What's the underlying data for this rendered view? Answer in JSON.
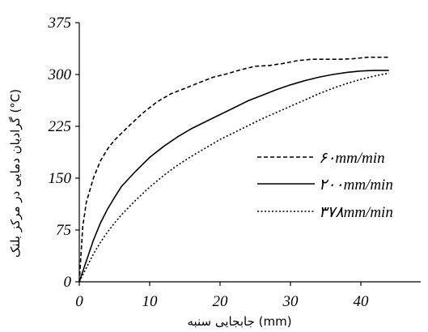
{
  "chart_data": {
    "type": "line",
    "xlabel": "جابجایی سنبه (mm)",
    "ylabel": "گرادیان دمایی در مرکز بلنک (°C)",
    "xlim": [
      0,
      46
    ],
    "ylim": [
      0,
      375
    ],
    "xticks": [
      "0",
      "10",
      "20",
      "30",
      "40"
    ],
    "yticks": [
      "0",
      "75",
      "150",
      "225",
      "300",
      "375"
    ],
    "grid": false,
    "legend_position": "right",
    "series": [
      {
        "name": "۶۰mm/min",
        "style": "dashed",
        "x": [
          0,
          0.5,
          1,
          2,
          3,
          4,
          5,
          7,
          9,
          11,
          13,
          15,
          17,
          19,
          21,
          23,
          25,
          27,
          29,
          31,
          33,
          35,
          37,
          39,
          41,
          43,
          44
        ],
        "y": [
          0,
          80,
          115,
          150,
          175,
          192,
          205,
          225,
          244,
          260,
          272,
          280,
          288,
          296,
          301,
          307,
          312,
          313,
          316,
          320,
          322,
          322,
          322,
          323,
          325,
          325,
          325
        ]
      },
      {
        "name": "۲۰۰mm/min",
        "style": "solid",
        "x": [
          0,
          1,
          2,
          3,
          4,
          5,
          6,
          8,
          10,
          12,
          14,
          16,
          18,
          20,
          22,
          24,
          26,
          28,
          30,
          32,
          34,
          36,
          38,
          40,
          42,
          44
        ],
        "y": [
          0,
          30,
          60,
          85,
          105,
          122,
          138,
          160,
          180,
          196,
          210,
          222,
          232,
          242,
          252,
          262,
          270,
          278,
          285,
          291,
          296,
          300,
          303,
          305,
          306,
          306
        ]
      },
      {
        "name": "۳۷۸mm/min",
        "style": "dotted",
        "x": [
          0,
          1,
          2,
          3,
          4,
          5,
          6,
          8,
          10,
          12,
          14,
          16,
          18,
          20,
          22,
          24,
          26,
          28,
          30,
          32,
          34,
          36,
          38,
          40,
          42,
          44
        ],
        "y": [
          0,
          20,
          40,
          57,
          72,
          85,
          97,
          118,
          137,
          154,
          169,
          182,
          194,
          206,
          216,
          226,
          236,
          245,
          254,
          263,
          272,
          280,
          287,
          293,
          298,
          302
        ]
      }
    ]
  }
}
